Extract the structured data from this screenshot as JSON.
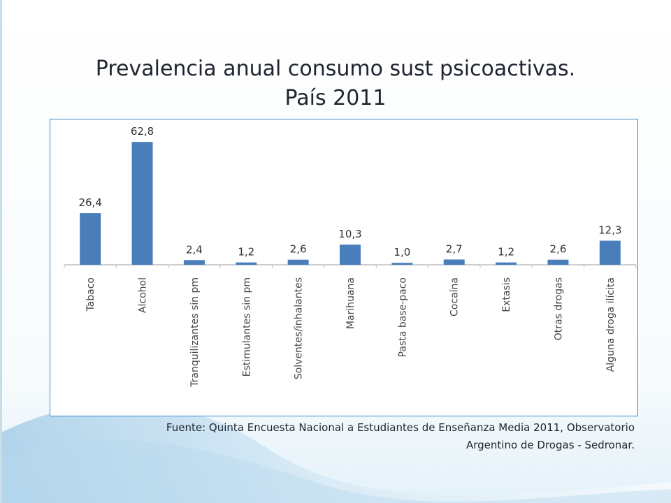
{
  "title": {
    "line1": "Prevalencia anual consumo  sust psicoactivas.",
    "line2": "País 2011"
  },
  "source": {
    "line1": "Fuente: Quinta Encuesta Nacional a Estudiantes de Enseñanza Media 2011, Observatorio",
    "line2": "Argentino de Drogas -  Sedronar."
  },
  "colors": {
    "bar": "#4a7ebb",
    "frame": "#3f88c5",
    "background_accent": "#cfe6f4"
  },
  "chart_data": {
    "type": "bar",
    "title": "",
    "xlabel": "",
    "ylabel": "",
    "ylim": [
      0,
      70
    ],
    "grid": false,
    "categories": [
      "Tabaco",
      "Alcohol",
      "Tranquilizantes sin pm",
      "Estimulantes sin pm",
      "Solventes/inhalantes",
      "Marihuana",
      "Pasta base-paco",
      "Cocaína",
      "Extasis",
      "Otras drogas",
      "Alguna droga ilícita"
    ],
    "values": [
      26.4,
      62.8,
      2.4,
      1.2,
      2.6,
      10.3,
      1.0,
      2.7,
      1.2,
      2.6,
      12.3
    ],
    "value_labels": [
      "26,4",
      "62,8",
      "2,4",
      "1,2",
      "2,6",
      "10,3",
      "1,0",
      "2,7",
      "1,2",
      "2,6",
      "12,3"
    ]
  }
}
